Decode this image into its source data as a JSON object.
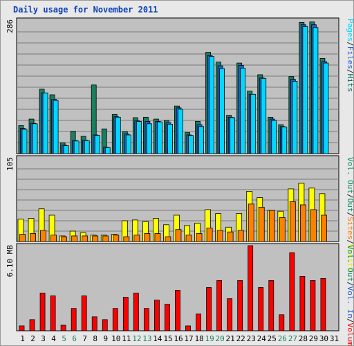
{
  "title": "Daily usage for November 2011",
  "chart_data": [
    {
      "type": "bar",
      "panel": "top",
      "ymax_label": "286",
      "ylim": [
        0,
        286
      ],
      "grid": true,
      "legend": [
        "Hits",
        "/",
        "Files",
        "/",
        "Pages"
      ],
      "legend_colors": [
        "#006f5f",
        "#222222",
        "#1e5fd8",
        "#222222",
        "#00d8ff"
      ],
      "categories": [
        "1",
        "2",
        "3",
        "4",
        "5",
        "6",
        "7",
        "8",
        "9",
        "10",
        "11",
        "12",
        "13",
        "14",
        "15",
        "16",
        "17",
        "18",
        "19",
        "20",
        "21",
        "22",
        "23",
        "24",
        "25",
        "26",
        "27",
        "28",
        "29",
        "30",
        "31"
      ],
      "series": [
        {
          "name": "Hits",
          "color": "#1a7f5e",
          "values": [
            60,
            74,
            138,
            126,
            23,
            48,
            37,
            147,
            53,
            84,
            47,
            77,
            78,
            74,
            71,
            102,
            45,
            69,
            217,
            196,
            82,
            194,
            134,
            169,
            78,
            62,
            165,
            281,
            282,
            204,
            null
          ]
        },
        {
          "name": "Files",
          "color": "#1e5fd8",
          "values": [
            54,
            65,
            130,
            116,
            18,
            28,
            29,
            40,
            14,
            79,
            42,
            70,
            69,
            69,
            66,
            98,
            40,
            62,
            210,
            188,
            78,
            189,
            127,
            162,
            74,
            58,
            159,
            276,
            276,
            197,
            null
          ]
        },
        {
          "name": "Pages",
          "color": "#00d8ff",
          "values": [
            52,
            64,
            130,
            114,
            17,
            27,
            28,
            39,
            13,
            78,
            40,
            69,
            64,
            68,
            63,
            95,
            39,
            58,
            208,
            182,
            77,
            183,
            127,
            161,
            71,
            57,
            155,
            272,
            270,
            194,
            null
          ]
        }
      ]
    },
    {
      "type": "bar",
      "panel": "middle",
      "ymax_label": "105",
      "ylim": [
        0,
        105
      ],
      "grid": true,
      "legend": [
        "Visits",
        "/",
        "Sites",
        "/",
        "Out",
        "/",
        "Vol. Out"
      ],
      "legend_colors": [
        "#f0f000",
        "#222222",
        "#ff7f00",
        "#222222",
        "#009060",
        "#222222",
        "#009060"
      ],
      "series": [
        {
          "name": "Visits",
          "color": "#ffff00",
          "values": [
            28,
            29,
            41,
            33,
            7,
            13,
            11,
            8,
            8,
            9,
            26,
            27,
            25,
            29,
            21,
            33,
            20,
            23,
            40,
            35,
            18,
            35,
            63,
            55,
            39,
            38,
            66,
            73,
            67,
            60,
            null
          ]
        },
        {
          "name": "Sites",
          "color": "#ff8000",
          "values": [
            9,
            10,
            14,
            8,
            6,
            7,
            7,
            7,
            7,
            8,
            6,
            8,
            10,
            10,
            6,
            15,
            8,
            10,
            17,
            14,
            12,
            14,
            47,
            43,
            39,
            30,
            50,
            46,
            40,
            33,
            null
          ]
        }
      ]
    },
    {
      "type": "bar",
      "panel": "bottom",
      "ymax_label": "6.10 MB",
      "ylim": [
        0,
        6.1
      ],
      "grid": false,
      "legend": [
        "Volume",
        "/",
        "Vol. In",
        "/",
        "Vol. Out"
      ],
      "legend_colors": [
        "#ff0000",
        "#222222",
        "#1e5fd8",
        "#222222",
        "#009060"
      ],
      "series": [
        {
          "name": "Volume",
          "color": "#ff0000",
          "values": [
            0.35,
            0.8,
            2.7,
            2.5,
            0.4,
            1.6,
            2.5,
            1.0,
            0.8,
            1.6,
            2.4,
            2.7,
            1.6,
            2.2,
            1.9,
            2.9,
            0.35,
            1.2,
            3.1,
            3.6,
            2.3,
            3.6,
            6.1,
            3.1,
            3.6,
            1.15,
            5.6,
            3.9,
            3.6,
            3.75,
            null
          ]
        }
      ]
    }
  ],
  "days": [
    "1",
    "2",
    "3",
    "4",
    "5",
    "6",
    "7",
    "8",
    "9",
    "10",
    "11",
    "12",
    "13",
    "14",
    "15",
    "16",
    "17",
    "18",
    "19",
    "20",
    "21",
    "22",
    "23",
    "24",
    "25",
    "26",
    "27",
    "28",
    "29",
    "30",
    "31"
  ],
  "weekend_days": [
    5,
    6,
    12,
    13,
    19,
    20,
    26,
    27
  ],
  "colors": {
    "day_normal": "#000000",
    "day_weekend": "#1a7f5e"
  }
}
